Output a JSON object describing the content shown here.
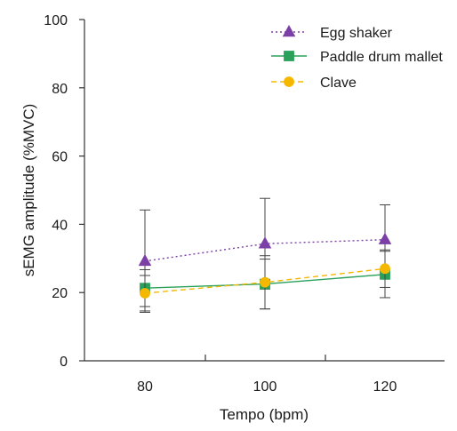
{
  "chart_data": {
    "type": "line",
    "title": "",
    "xlabel": "Tempo (bpm)",
    "ylabel": "sEMG amplitude (%MVC)",
    "categories": [
      "80",
      "100",
      "120"
    ],
    "x": [
      80,
      100,
      120
    ],
    "ylim": [
      0,
      100
    ],
    "yticks": [
      0,
      20,
      40,
      60,
      80,
      100
    ],
    "grid": false,
    "legend_position": "top-right",
    "series": [
      {
        "name": "Egg shaker",
        "values": [
          29.2,
          34.3,
          35.5
        ],
        "error": [
          15.0,
          13.3,
          10.2
        ],
        "color": "#7b3fa6",
        "marker": "triangle",
        "line_style": "dotted"
      },
      {
        "name": "Paddle drum mallet",
        "values": [
          21.3,
          22.5,
          25.3
        ],
        "error": [
          5.4,
          7.3,
          6.8
        ],
        "color": "#2aa15a",
        "marker": "square",
        "line_style": "solid"
      },
      {
        "name": "Clave",
        "values": [
          19.8,
          23.0,
          27.0
        ],
        "error": [
          5.2,
          7.8,
          5.5
        ],
        "color": "#f5b800",
        "marker": "circle",
        "line_style": "dashed"
      }
    ]
  }
}
